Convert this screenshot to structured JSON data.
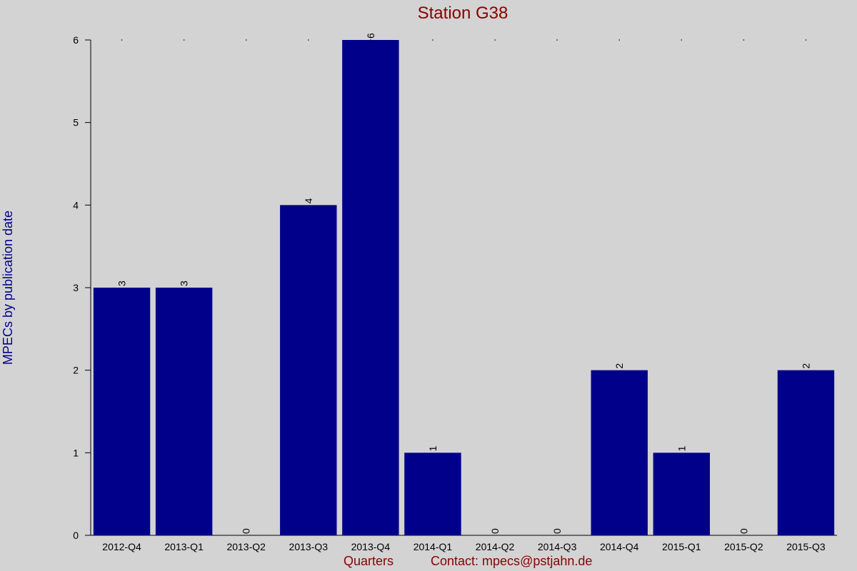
{
  "chart_data": {
    "type": "bar",
    "title": "Station G38",
    "xlabel": "Quarters",
    "ylabel": "MPECs by publication date",
    "contact": "Contact: mpecs",
    "contact_suffix": "pstjahn.de",
    "categories": [
      "2012-Q4",
      "2013-Q1",
      "2013-Q2",
      "2013-Q3",
      "2013-Q4",
      "2014-Q1",
      "2014-Q2",
      "2014-Q3",
      "2014-Q4",
      "2015-Q1",
      "2015-Q2",
      "2015-Q3"
    ],
    "values": [
      3,
      3,
      0,
      4,
      6,
      1,
      0,
      0,
      2,
      1,
      0,
      2
    ],
    "data_labels": [
      "3",
      "3",
      "0",
      "4",
      "6",
      "1",
      "0",
      "0",
      "2",
      "1",
      "0",
      "2"
    ],
    "y_ticks": [
      0,
      1,
      2,
      3,
      4,
      5,
      6
    ],
    "ylim": [
      0,
      6
    ],
    "grid": false,
    "colors": {
      "background": "#d3d3d3",
      "bar": "#00008b",
      "title": "#8b0000",
      "ylabel": "#00008b",
      "xlabel": "#8b0000",
      "axis": "#000000"
    }
  }
}
